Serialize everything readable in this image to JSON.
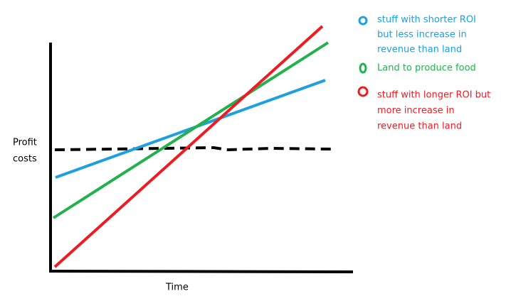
{
  "y_axis_label": [
    "Profit",
    "costs"
  ],
  "x_axis_label": "Time",
  "legend": [
    {
      "lines": [
        "stuff with shorter ROI",
        "but less increase in",
        "revenue than land"
      ]
    },
    {
      "lines": [
        "Land to produce food"
      ]
    },
    {
      "lines": [
        "stuff with longer ROI but",
        "more increase in",
        "revenue than land"
      ]
    }
  ]
}
